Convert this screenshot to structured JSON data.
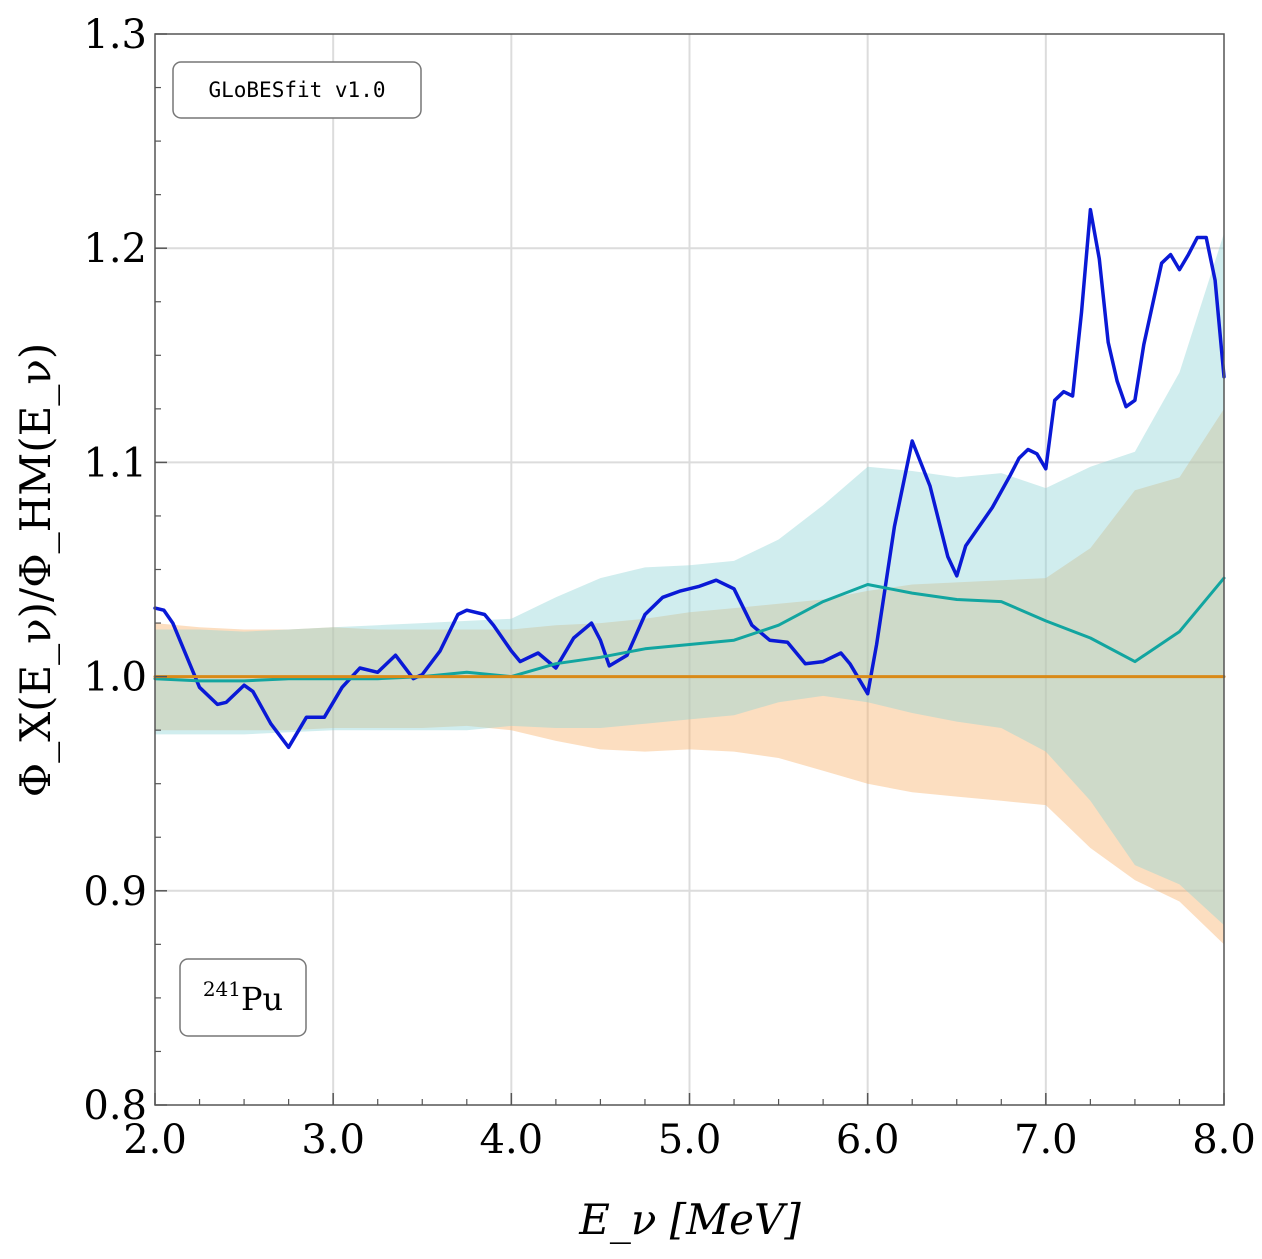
{
  "chart_data": {
    "type": "line",
    "xlabel": "E_ν [MeV]",
    "ylabel": "Φ_X(E_ν)/Φ_HM(E_ν)",
    "xlim": [
      2.0,
      8.0
    ],
    "ylim": [
      0.8,
      1.3
    ],
    "xticks": [
      2.0,
      3.0,
      4.0,
      5.0,
      6.0,
      7.0,
      8.0
    ],
    "xtick_labels": [
      "2.0",
      "3.0",
      "4.0",
      "5.0",
      "6.0",
      "7.0",
      "8.0"
    ],
    "yticks": [
      0.8,
      0.9,
      1.0,
      1.1,
      1.2,
      1.3
    ],
    "ytick_labels": [
      "0.8",
      "0.9",
      "1.0",
      "1.1",
      "1.2",
      "1.3"
    ],
    "grid": true,
    "annotations": {
      "software": "GLoBESfit v1.0",
      "isotope_mass": "241",
      "isotope_symbol": "Pu"
    },
    "bands": [
      {
        "color": "#f7b06a",
        "x": [
          2.0,
          2.25,
          2.5,
          2.75,
          3.0,
          3.25,
          3.5,
          3.75,
          4.0,
          4.25,
          4.5,
          4.75,
          5.0,
          5.25,
          5.5,
          5.75,
          6.0,
          6.25,
          6.5,
          6.75,
          7.0,
          7.25,
          7.5,
          7.75,
          8.0
        ],
        "upper": [
          1.025,
          1.023,
          1.022,
          1.022,
          1.023,
          1.022,
          1.022,
          1.022,
          1.022,
          1.024,
          1.025,
          1.027,
          1.03,
          1.032,
          1.034,
          1.036,
          1.04,
          1.043,
          1.044,
          1.045,
          1.046,
          1.06,
          1.087,
          1.093,
          1.125
        ],
        "lower": [
          0.975,
          0.975,
          0.975,
          0.975,
          0.976,
          0.976,
          0.976,
          0.977,
          0.975,
          0.97,
          0.966,
          0.965,
          0.966,
          0.965,
          0.962,
          0.956,
          0.95,
          0.946,
          0.944,
          0.942,
          0.94,
          0.92,
          0.905,
          0.895,
          0.875
        ]
      },
      {
        "color": "#8ed3d6",
        "x": [
          2.0,
          2.25,
          2.5,
          2.75,
          3.0,
          3.25,
          3.5,
          3.75,
          4.0,
          4.25,
          4.5,
          4.75,
          5.0,
          5.25,
          5.5,
          5.75,
          6.0,
          6.25,
          6.5,
          6.75,
          7.0,
          7.25,
          7.5,
          7.75,
          8.0
        ],
        "upper": [
          1.022,
          1.022,
          1.021,
          1.022,
          1.023,
          1.024,
          1.025,
          1.026,
          1.027,
          1.037,
          1.046,
          1.051,
          1.052,
          1.054,
          1.064,
          1.08,
          1.098,
          1.096,
          1.093,
          1.095,
          1.088,
          1.098,
          1.105,
          1.142,
          1.207
        ],
        "lower": [
          0.973,
          0.973,
          0.973,
          0.974,
          0.975,
          0.975,
          0.975,
          0.975,
          0.977,
          0.976,
          0.976,
          0.978,
          0.98,
          0.982,
          0.988,
          0.991,
          0.988,
          0.983,
          0.979,
          0.976,
          0.965,
          0.942,
          0.912,
          0.903,
          0.884
        ]
      }
    ],
    "series": [
      {
        "color": "#0a19d6",
        "x": [
          2.0,
          2.05,
          2.1,
          2.2,
          2.25,
          2.35,
          2.4,
          2.5,
          2.55,
          2.65,
          2.75,
          2.85,
          2.95,
          3.05,
          3.15,
          3.25,
          3.35,
          3.45,
          3.5,
          3.6,
          3.7,
          3.75,
          3.85,
          3.9,
          4.0,
          4.05,
          4.15,
          4.25,
          4.35,
          4.45,
          4.5,
          4.55,
          4.65,
          4.75,
          4.85,
          4.95,
          5.05,
          5.15,
          5.25,
          5.35,
          5.45,
          5.55,
          5.65,
          5.75,
          5.85,
          5.9,
          6.0,
          6.05,
          6.15,
          6.25,
          6.35,
          6.45,
          6.5,
          6.55,
          6.7,
          6.8,
          6.85,
          6.9,
          6.95,
          7.0,
          7.05,
          7.1,
          7.15,
          7.2,
          7.25,
          7.3,
          7.35,
          7.4,
          7.45,
          7.5,
          7.55,
          7.65,
          7.7,
          7.75,
          7.8,
          7.85,
          7.9,
          7.95,
          8.0
        ],
        "y": [
          1.032,
          1.031,
          1.025,
          1.005,
          0.995,
          0.987,
          0.988,
          0.996,
          0.993,
          0.978,
          0.967,
          0.981,
          0.981,
          0.995,
          1.004,
          1.002,
          1.01,
          0.999,
          1.001,
          1.012,
          1.029,
          1.031,
          1.029,
          1.024,
          1.012,
          1.007,
          1.011,
          1.004,
          1.018,
          1.025,
          1.017,
          1.005,
          1.01,
          1.029,
          1.037,
          1.04,
          1.042,
          1.045,
          1.041,
          1.024,
          1.017,
          1.016,
          1.006,
          1.007,
          1.011,
          1.006,
          0.992,
          1.015,
          1.07,
          1.11,
          1.089,
          1.056,
          1.047,
          1.061,
          1.079,
          1.094,
          1.102,
          1.106,
          1.104,
          1.097,
          1.129,
          1.133,
          1.131,
          1.17,
          1.218,
          1.195,
          1.156,
          1.138,
          1.126,
          1.129,
          1.155,
          1.193,
          1.197,
          1.19,
          1.197,
          1.205,
          1.205,
          1.185,
          1.14
        ]
      },
      {
        "color": "#12a5a0",
        "x": [
          2.0,
          2.25,
          2.5,
          2.75,
          3.0,
          3.25,
          3.5,
          3.75,
          4.0,
          4.25,
          4.5,
          4.75,
          5.0,
          5.25,
          5.5,
          5.75,
          6.0,
          6.25,
          6.5,
          6.75,
          7.0,
          7.25,
          7.5,
          7.75,
          8.0
        ],
        "y": [
          0.999,
          0.998,
          0.998,
          0.999,
          0.999,
          0.999,
          1.0,
          1.002,
          1.0,
          1.006,
          1.009,
          1.013,
          1.015,
          1.017,
          1.024,
          1.035,
          1.043,
          1.039,
          1.036,
          1.035,
          1.026,
          1.018,
          1.007,
          1.021,
          1.046
        ]
      },
      {
        "color": "#d98a18",
        "x": [
          2.0,
          8.0
        ],
        "y": [
          1.0,
          1.0
        ]
      }
    ]
  }
}
